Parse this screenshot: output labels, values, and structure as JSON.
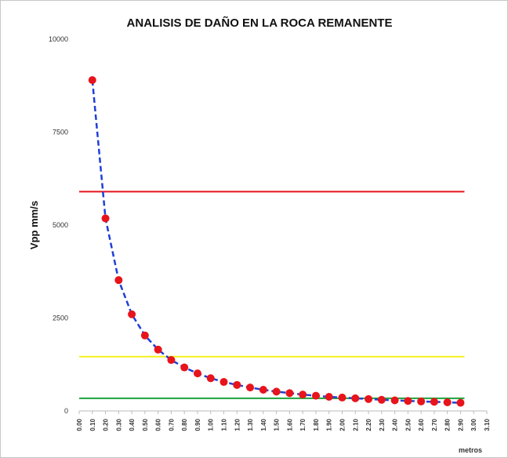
{
  "chart_data": {
    "type": "line",
    "title": "ANALISIS DE DAÑO EN LA ROCA REMANENTE",
    "y_label": "Vpp mm/s",
    "x_label": "metros",
    "x": [
      0.1,
      0.2,
      0.3,
      0.4,
      0.5,
      0.6,
      0.7,
      0.8,
      0.9,
      1.0,
      1.1,
      1.2,
      1.3,
      1.4,
      1.5,
      1.6,
      1.7,
      1.8,
      1.9,
      2.0,
      2.1,
      2.2,
      2.3,
      2.4,
      2.5,
      2.6,
      2.7,
      2.8,
      2.9
    ],
    "series": [
      {
        "color": "#1f3fd6",
        "marker_color": "#e8141b",
        "values": [
          8900,
          5180,
          3520,
          2600,
          2030,
          1650,
          1370,
          1170,
          1010,
          880,
          780,
          700,
          630,
          570,
          520,
          480,
          440,
          410,
          380,
          360,
          340,
          320,
          300,
          285,
          270,
          255,
          245,
          232,
          220
        ]
      }
    ],
    "thresholds": [
      {
        "value": 5900,
        "color": "#e8141b"
      },
      {
        "value": 1460,
        "color": "#f5f01e"
      },
      {
        "value": 340,
        "color": "#1aa33a"
      }
    ],
    "xlim": [
      0,
      3.1
    ],
    "ylim": [
      0,
      10000
    ],
    "yticks": [
      0,
      2500,
      5000,
      7500,
      10000
    ],
    "xticks": [
      {
        "value": 0,
        "label": "0.00"
      },
      {
        "value": 0.1,
        "label": "0.10"
      },
      {
        "value": 0.2,
        "label": "0.20"
      },
      {
        "value": 0.3,
        "label": "0.30"
      },
      {
        "value": 0.4,
        "label": "0.40"
      },
      {
        "value": 0.5,
        "label": "0.50"
      },
      {
        "value": 0.6,
        "label": "0.60"
      },
      {
        "value": 0.7,
        "label": "0.70"
      },
      {
        "value": 0.8,
        "label": "0.80"
      },
      {
        "value": 0.9,
        "label": "0.90"
      },
      {
        "value": 1.0,
        "label": "1.00"
      },
      {
        "value": 1.1,
        "label": "1.10"
      },
      {
        "value": 1.2,
        "label": "1.20"
      },
      {
        "value": 1.3,
        "label": "1.30"
      },
      {
        "value": 1.4,
        "label": "1.40"
      },
      {
        "value": 1.5,
        "label": "1.50"
      },
      {
        "value": 1.6,
        "label": "1.60"
      },
      {
        "value": 1.7,
        "label": "1.70"
      },
      {
        "value": 1.8,
        "label": "1.80"
      },
      {
        "value": 1.9,
        "label": "1.90"
      },
      {
        "value": 2.0,
        "label": "2.00"
      },
      {
        "value": 2.1,
        "label": "2.10"
      },
      {
        "value": 2.2,
        "label": "2.20"
      },
      {
        "value": 2.3,
        "label": "2.30"
      },
      {
        "value": 2.4,
        "label": "2.40"
      },
      {
        "value": 2.5,
        "label": "2.50"
      },
      {
        "value": 2.6,
        "label": "2.60"
      },
      {
        "value": 2.7,
        "label": "2.70"
      },
      {
        "value": 2.8,
        "label": "2.80"
      },
      {
        "value": 2.9,
        "label": "2.90"
      },
      {
        "value": 3.0,
        "label": "3.00"
      },
      {
        "value": 3.1,
        "label": "3.10"
      }
    ]
  }
}
